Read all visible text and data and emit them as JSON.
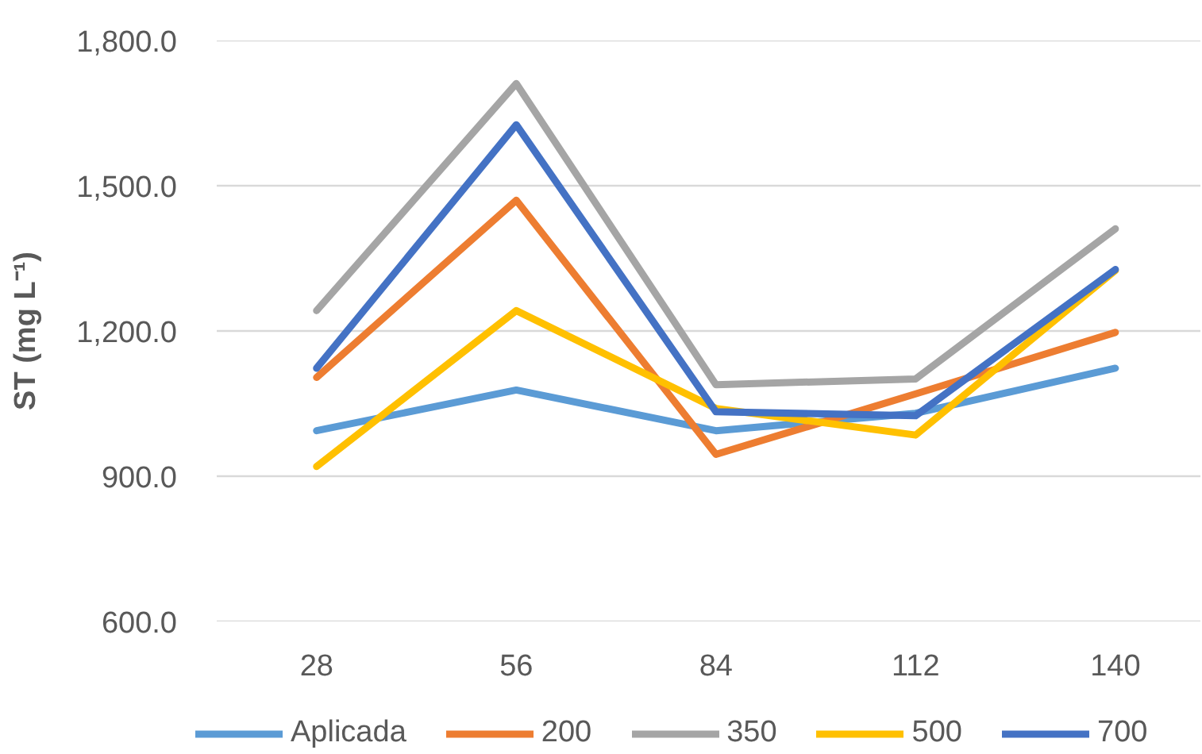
{
  "chart_data": {
    "type": "line",
    "ylabel": "ST (mg L⁻¹)",
    "categories": [
      "28",
      "56",
      "84",
      "112",
      "140"
    ],
    "series": [
      {
        "name": "Aplicada",
        "color": "#5b9bd5",
        "values": [
          994,
          1078,
          994,
          1030,
          1123
        ]
      },
      {
        "name": "200",
        "color": "#ed7d31",
        "values": [
          1104,
          1470,
          945,
          1070,
          1197
        ]
      },
      {
        "name": "350",
        "color": "#a5a5a5",
        "values": [
          1242,
          1711,
          1089,
          1101,
          1411
        ]
      },
      {
        "name": "500",
        "color": "#ffc000",
        "values": [
          920,
          1242,
          1040,
          985,
          1325
        ]
      },
      {
        "name": "700",
        "color": "#4472c4",
        "values": [
          1123,
          1626,
          1033,
          1025,
          1327
        ]
      }
    ],
    "ylim": [
      600,
      1800
    ],
    "yticks": [
      {
        "value": 600,
        "label": "600.0"
      },
      {
        "value": 900,
        "label": "900.0"
      },
      {
        "value": 1200,
        "label": "1,200.0"
      },
      {
        "value": 1500,
        "label": "1,500.0"
      },
      {
        "value": 1800,
        "label": "1,800.0"
      }
    ],
    "grid": "y",
    "legend": "bottom"
  }
}
